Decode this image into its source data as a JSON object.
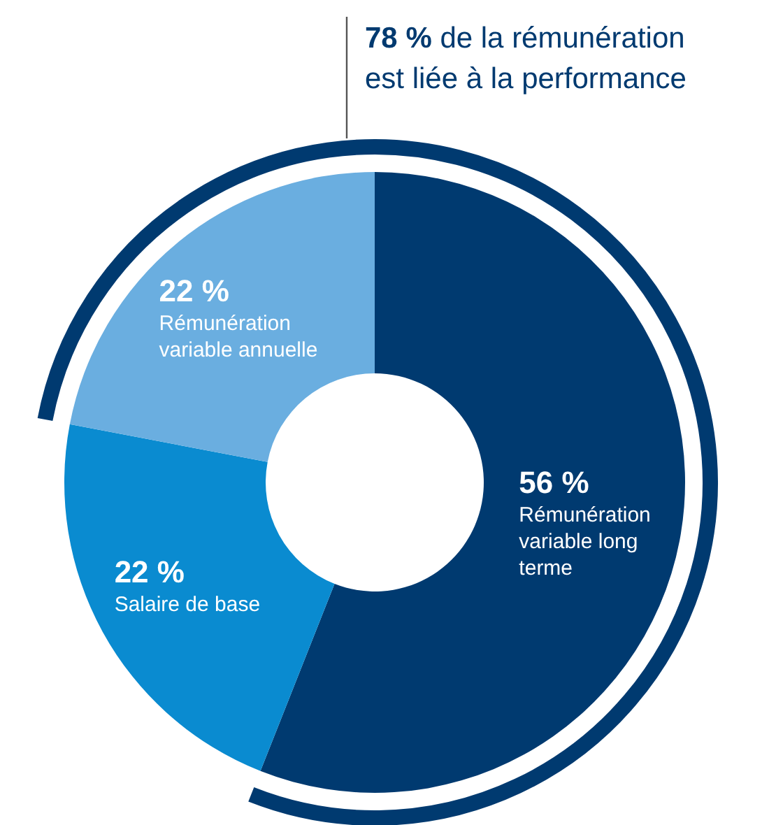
{
  "chart_data": {
    "type": "donut",
    "categories": [
      "Rémunération variable long terme",
      "Salaire de base",
      "Rémunération variable annuelle"
    ],
    "values": [
      56,
      22,
      22
    ],
    "colors": [
      "#003a70",
      "#0a8bd0",
      "#6aaee0"
    ],
    "value_labels": [
      "56 %",
      "22 %",
      "22 %"
    ],
    "annotations": [
      "78 % de la rémunération est liée à la performance"
    ],
    "legend": false
  }
}
